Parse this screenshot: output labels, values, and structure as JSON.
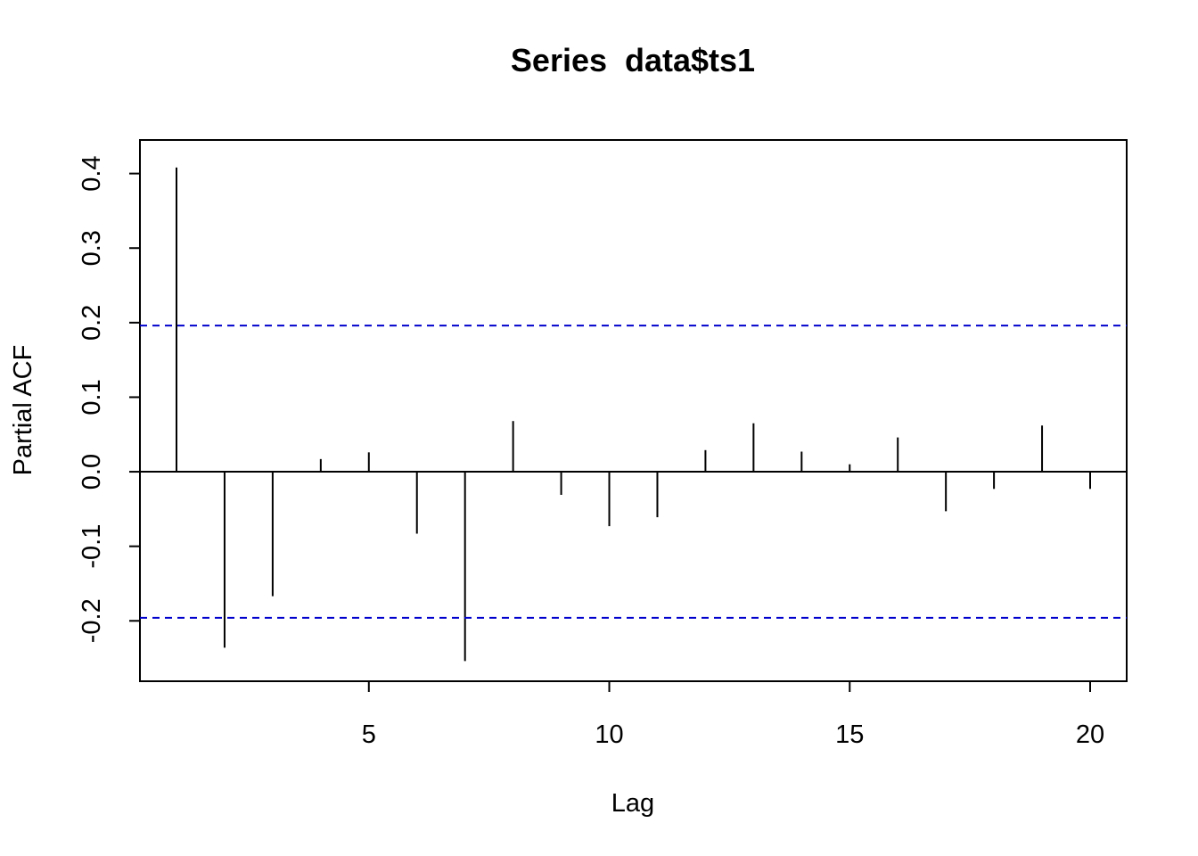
{
  "chart_data": {
    "type": "bar",
    "title": "Series  data$ts1",
    "xlabel": "Lag",
    "ylabel": "Partial ACF",
    "xlim": [
      0.24,
      20.76
    ],
    "ylim": [
      -0.281,
      0.445
    ],
    "x_ticks": [
      5,
      10,
      15,
      20
    ],
    "x_tick_labels": [
      "5",
      "10",
      "15",
      "20"
    ],
    "y_ticks": [
      -0.2,
      -0.1,
      0.0,
      0.1,
      0.2,
      0.3,
      0.4
    ],
    "y_tick_labels": [
      "-0.2",
      "-0.1",
      "0.0",
      "0.1",
      "0.2",
      "0.3",
      "0.4"
    ],
    "lags": [
      1,
      2,
      3,
      4,
      5,
      6,
      7,
      8,
      9,
      10,
      11,
      12,
      13,
      14,
      15,
      16,
      17,
      18,
      19,
      20
    ],
    "values": [
      0.408,
      -0.236,
      -0.167,
      0.017,
      0.026,
      -0.083,
      -0.254,
      0.068,
      -0.031,
      -0.073,
      -0.061,
      0.029,
      0.065,
      0.027,
      0.01,
      0.046,
      -0.053,
      -0.023,
      0.062,
      -0.023
    ],
    "confidence_bound": 0.196,
    "confidence_color": "#0000CD",
    "grid": false,
    "legend": "none"
  }
}
